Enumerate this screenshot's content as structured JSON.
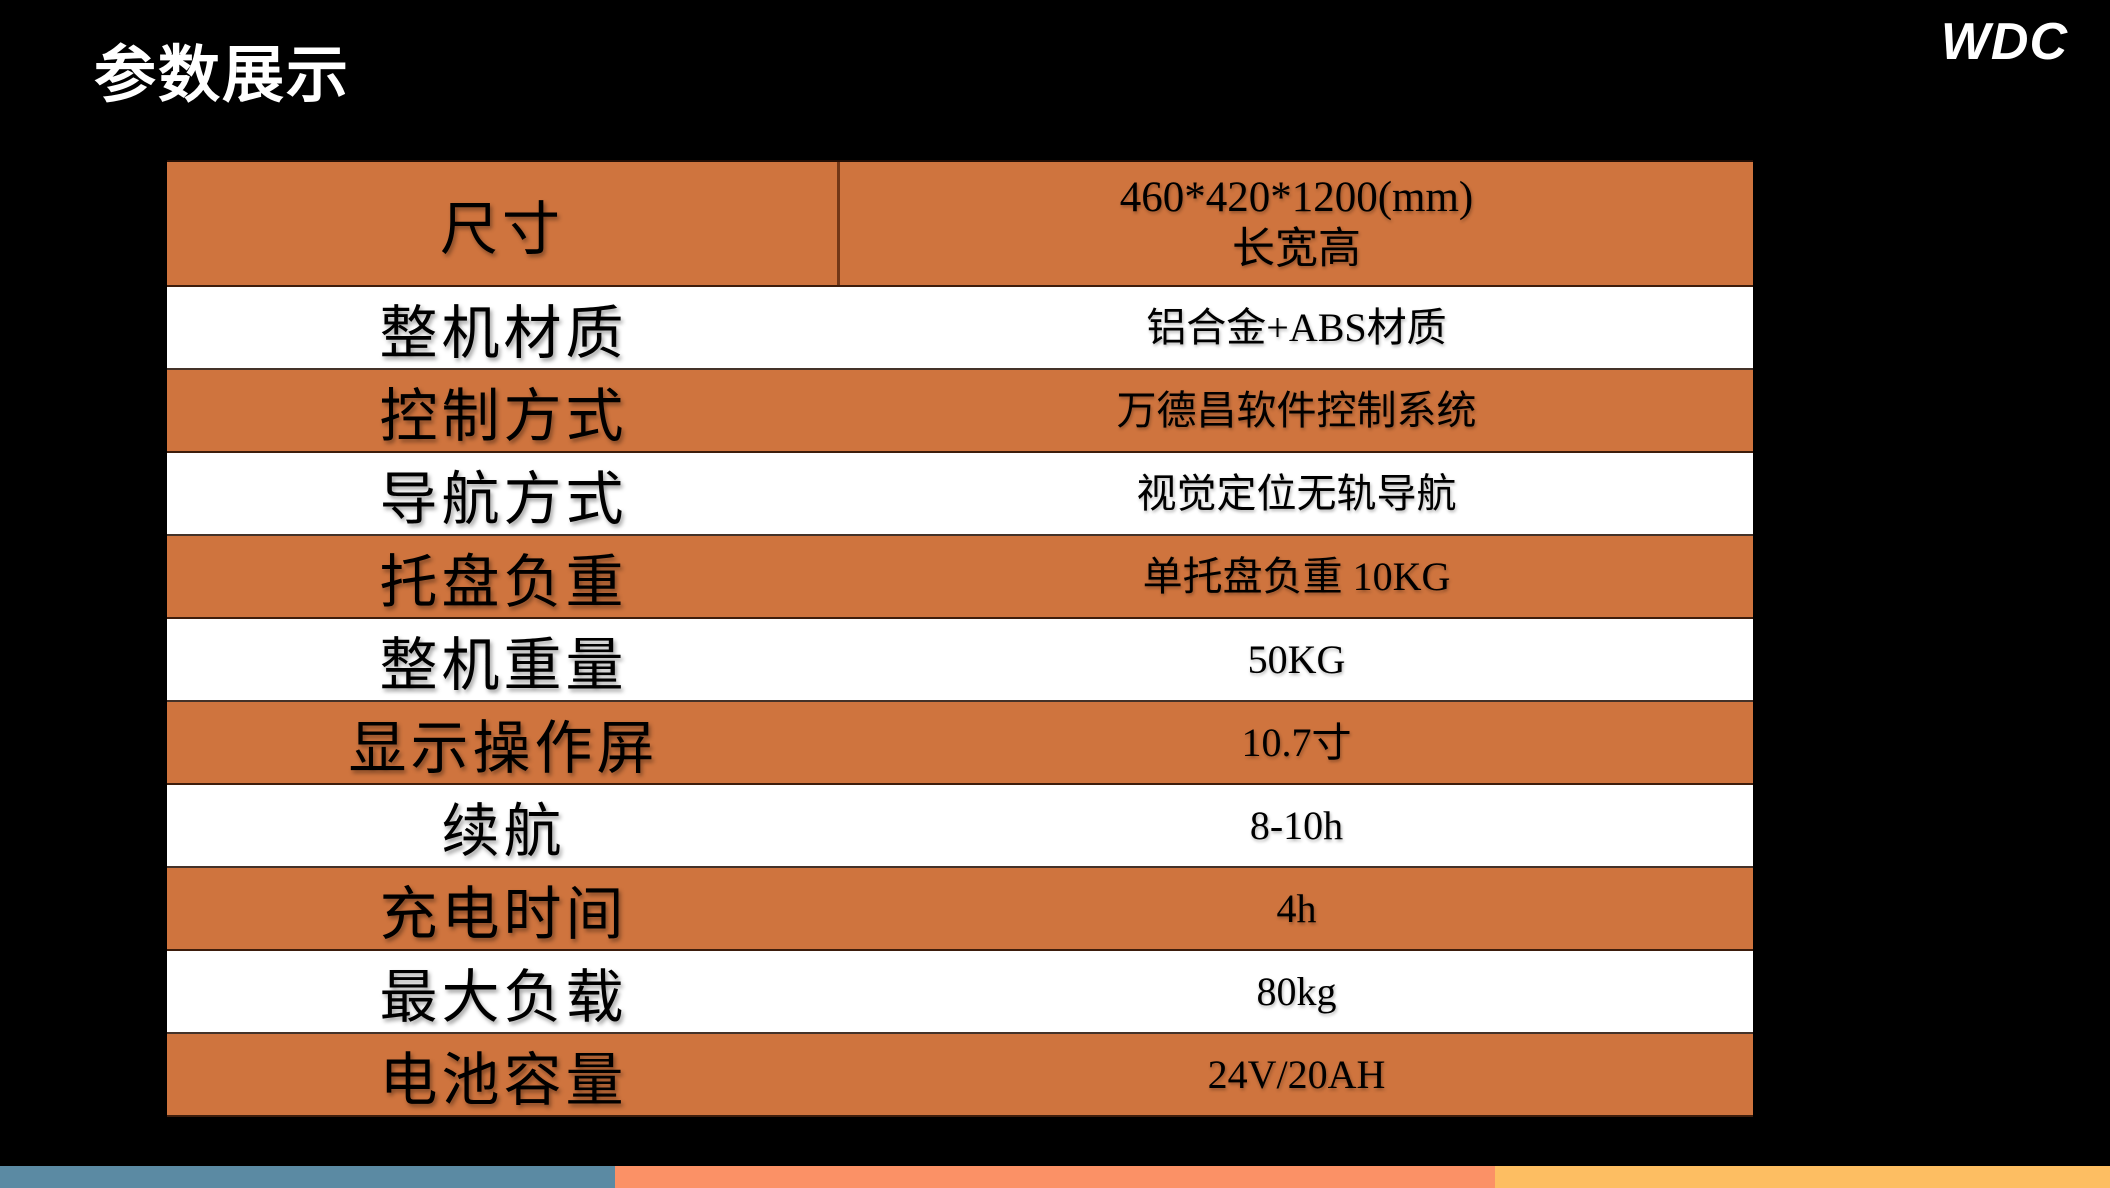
{
  "slide": {
    "title": "参数展示",
    "logo": "WDC"
  },
  "table": {
    "rows": [
      {
        "label": "尺寸",
        "value": "460*420*1200(mm)",
        "value_line2": "长宽高",
        "style": "orange",
        "tall": true,
        "divider": true
      },
      {
        "label": "整机材质",
        "value": "铝合金+ABS材质",
        "style": "white"
      },
      {
        "label": "控制方式",
        "value": "万德昌软件控制系统",
        "style": "orange"
      },
      {
        "label": "导航方式",
        "value": "视觉定位无轨导航",
        "style": "white"
      },
      {
        "label": "托盘负重",
        "value": "单托盘负重 10KG",
        "style": "orange"
      },
      {
        "label": "整机重量",
        "value": "50KG",
        "style": "white"
      },
      {
        "label": "显示操作屏",
        "value": "10.7寸",
        "style": "orange"
      },
      {
        "label": "续航",
        "value": "8-10h",
        "style": "white"
      },
      {
        "label": "充电时间",
        "value": "4h",
        "style": "orange"
      },
      {
        "label": "最大负载",
        "value": "80kg",
        "style": "white"
      },
      {
        "label": "电池容量",
        "value": "24V/20AH",
        "style": "orange"
      }
    ]
  },
  "colors": {
    "background": "#000000",
    "row_orange": "#cf743e",
    "row_white": "#ffffff",
    "text": "#000000",
    "title_text": "#ffffff",
    "footer_blue": "#5b8aa3",
    "footer_salmon": "#fb9166",
    "footer_amber": "#fdbe62"
  }
}
